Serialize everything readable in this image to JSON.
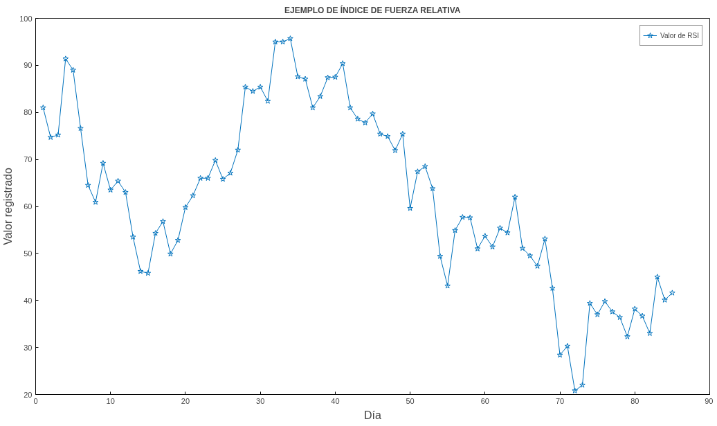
{
  "chart_data": {
    "type": "line",
    "title": "EJEMPLO DE ÍNDICE DE FUERZA RELATIVA",
    "xlabel": "Día",
    "ylabel": "Valor registrado",
    "x": [
      1,
      2,
      3,
      4,
      5,
      6,
      7,
      8,
      9,
      10,
      11,
      12,
      13,
      14,
      15,
      16,
      17,
      18,
      19,
      20,
      21,
      22,
      23,
      24,
      25,
      26,
      27,
      28,
      29,
      30,
      31,
      32,
      33,
      34,
      35,
      36,
      37,
      38,
      39,
      40,
      41,
      42,
      43,
      44,
      45,
      46,
      47,
      48,
      49,
      50,
      51,
      52,
      53,
      54,
      55,
      56,
      57,
      58,
      59,
      60,
      61,
      62,
      63,
      64,
      65,
      66,
      67,
      68,
      69,
      70,
      71,
      72,
      73,
      74,
      75,
      76,
      77,
      78,
      79,
      80,
      81,
      82,
      83,
      84,
      85
    ],
    "series": [
      {
        "name": "Valor de RSI",
        "color": "#0072bd",
        "values": [
          81,
          74.7,
          75.2,
          91.4,
          89,
          76.6,
          64.5,
          60.9,
          69.2,
          63.5,
          65.4,
          63,
          53.5,
          46.2,
          45.8,
          54.3,
          56.8,
          49.9,
          52.8,
          59.8,
          62.3,
          66,
          66,
          69.8,
          65.8,
          67.1,
          72,
          85.4,
          84.5,
          85.4,
          82.4,
          95,
          95,
          95.7,
          87.6,
          87.1,
          81,
          83.4,
          87.4,
          87.5,
          90.4,
          81,
          78.6,
          77.8,
          79.7,
          75.4,
          74.9,
          71.9,
          75.4,
          59.6,
          67.4,
          68.5,
          63.8,
          49.4,
          43.1,
          54.9,
          57.7,
          57.6,
          51,
          53.7,
          51.4,
          55.4,
          54.4,
          62,
          51.1,
          49.5,
          47.3,
          53.1,
          42.6,
          28.4,
          30.3,
          20.8,
          22,
          39.4,
          37,
          39.8,
          37.6,
          36.4,
          32.3,
          38.2,
          36.7,
          33,
          45,
          40.1,
          41.6
        ]
      }
    ],
    "xlim": [
      0,
      90
    ],
    "xticks": [
      0,
      10,
      20,
      30,
      40,
      50,
      60,
      70,
      80,
      90
    ],
    "ylim": [
      20,
      100
    ],
    "yticks": [
      20,
      30,
      40,
      50,
      60,
      70,
      80,
      90,
      100
    ],
    "marker": "star",
    "line_style": "solid",
    "legend": "top right",
    "grid": false
  }
}
